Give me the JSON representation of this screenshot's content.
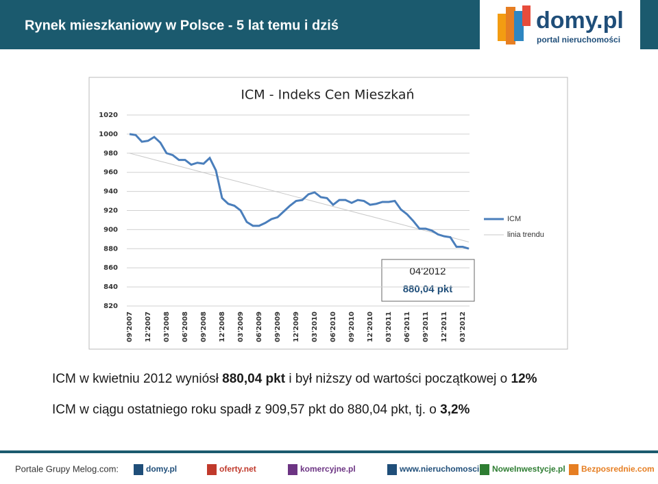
{
  "header": {
    "title": "Rynek mieszkaniowy w Polsce - 5 lat temu i dziś",
    "logo_name": "domy.pl",
    "logo_tagline": "portal nieruchomości"
  },
  "chart_data": {
    "type": "line",
    "title": "ICM - Indeks Cen Mieszkań",
    "categories": [
      "09'2007",
      null,
      null,
      "12'2007",
      null,
      null,
      "03'2008",
      null,
      null,
      "06'2008",
      null,
      null,
      "09'2008",
      null,
      null,
      "12'2008",
      null,
      null,
      "03'2009",
      null,
      null,
      "06'2009",
      null,
      null,
      "09'2009",
      null,
      null,
      "12'2009",
      null,
      null,
      "03'2010",
      null,
      null,
      "06'2010",
      null,
      null,
      "09'2010",
      null,
      null,
      "12'2010",
      null,
      null,
      "03'2011",
      null,
      null,
      "06'2011",
      null,
      null,
      "09'2011",
      null,
      null,
      "12'2011",
      null,
      null,
      "03'2012",
      null
    ],
    "series": [
      {
        "name": "ICM",
        "color": "#4a7ebb",
        "values": [
          1000,
          999,
          992,
          993,
          997,
          991,
          980,
          978,
          973,
          973,
          968,
          970,
          969,
          975,
          962,
          933,
          927,
          925,
          920,
          908,
          904,
          904,
          907,
          911,
          913,
          919,
          925,
          930,
          931,
          937,
          939,
          934,
          933,
          926,
          931,
          931,
          928,
          931,
          930,
          926,
          927,
          929,
          929,
          930,
          921,
          916,
          909,
          901,
          901,
          899,
          895,
          893,
          892,
          882,
          882,
          880.04
        ]
      },
      {
        "name": "linia trendu",
        "color": "#c8c8c8",
        "values": [
          980.0,
          978.3,
          976.6,
          974.9,
          973.2,
          971.5,
          969.9,
          968.2,
          966.5,
          964.8,
          963.1,
          961.4,
          959.7,
          958.0,
          956.3,
          954.6,
          952.9,
          951.3,
          949.6,
          947.9,
          946.2,
          944.5,
          942.8,
          941.1,
          939.4,
          937.7,
          936.0,
          934.3,
          932.7,
          931.0,
          929.3,
          927.6,
          925.9,
          924.2,
          922.5,
          920.8,
          919.1,
          917.4,
          915.7,
          914.1,
          912.4,
          910.7,
          909.0,
          907.3,
          905.6,
          903.9,
          902.2,
          900.5,
          898.8,
          897.1,
          895.5,
          893.8,
          892.1,
          890.4,
          888.7,
          887.0
        ]
      }
    ],
    "ylim": [
      820,
      1020
    ],
    "yticks": [
      820,
      840,
      860,
      880,
      900,
      920,
      940,
      960,
      980,
      1000,
      1020
    ],
    "grid": true,
    "legend": "right",
    "annotation": {
      "date": "04'2012",
      "value": "880,04 pkt"
    }
  },
  "summary": [
    [
      "ICM w kwietniu 2012 wyniósł ",
      "880,04 pkt",
      " i był niższy od wartości początkowej o ",
      "12%"
    ],
    [
      "ICM w ciągu ostatniego roku spadł z 909,57 pkt do 880,04 pkt, tj. o ",
      "3,2%"
    ]
  ],
  "footer": {
    "label": "Portale Grupy Melog.com:",
    "portals": [
      "domy.pl",
      "oferty.net",
      "komercyjne.pl",
      "www.nieruchomosci.pl",
      "NoweInwestycje.pl",
      "Bezposrednie.com"
    ]
  }
}
